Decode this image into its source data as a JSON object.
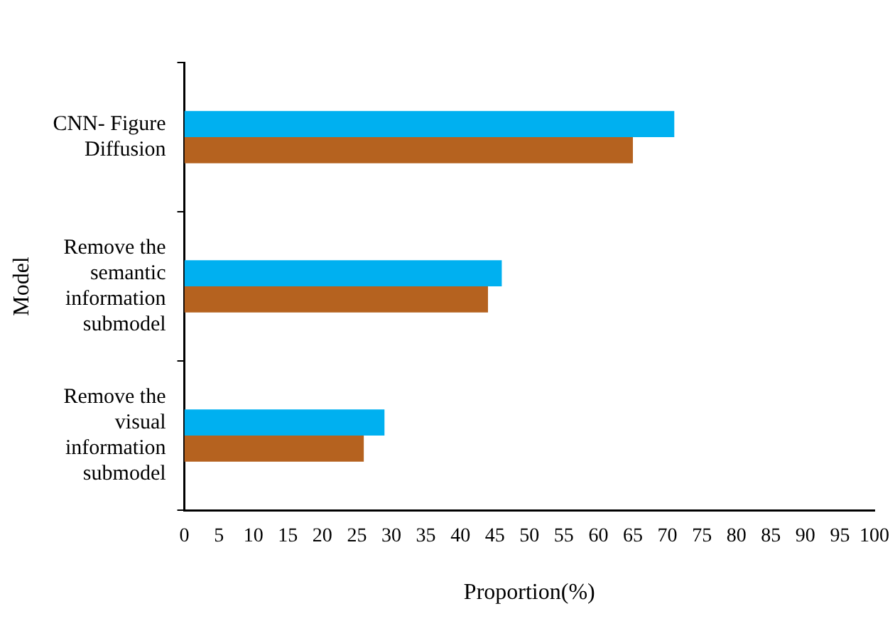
{
  "chart_data": {
    "type": "bar",
    "orientation": "horizontal",
    "xlabel": "Proportion(%)",
    "ylabel": "Model",
    "categories": [
      "CNN- Figure Diffusion",
      "Remove the semantic information submodel",
      "Remove the visual information submodel"
    ],
    "series": [
      {
        "color": "#00b0f0",
        "values": [
          71,
          46,
          29
        ]
      },
      {
        "color": "#b5621f",
        "values": [
          65,
          44,
          26
        ]
      }
    ],
    "xlim": [
      0,
      100
    ],
    "xticks": [
      0,
      5,
      10,
      15,
      20,
      25,
      30,
      35,
      40,
      45,
      50,
      55,
      60,
      65,
      70,
      75,
      80,
      85,
      90,
      95,
      100
    ],
    "grid": false,
    "legend": false
  }
}
